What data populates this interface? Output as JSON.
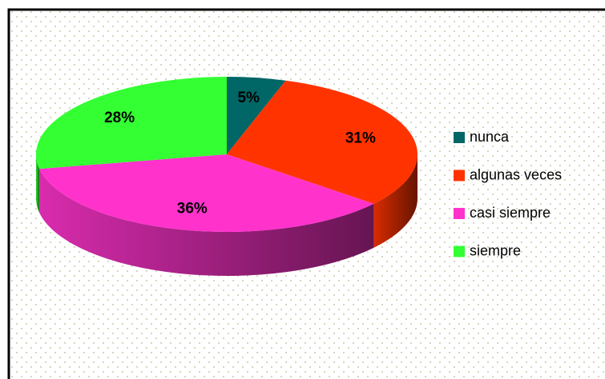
{
  "chart_data": {
    "type": "pie",
    "categories": [
      "nunca",
      "algunas veces",
      "casi siempre",
      "siempre"
    ],
    "values": [
      5,
      31,
      36,
      28
    ],
    "value_labels": [
      "5%",
      "31%",
      "36%",
      "28%"
    ],
    "colors": [
      "#006666",
      "#ff3300",
      "#ff33cc",
      "#33ff33"
    ],
    "legend": "right"
  }
}
